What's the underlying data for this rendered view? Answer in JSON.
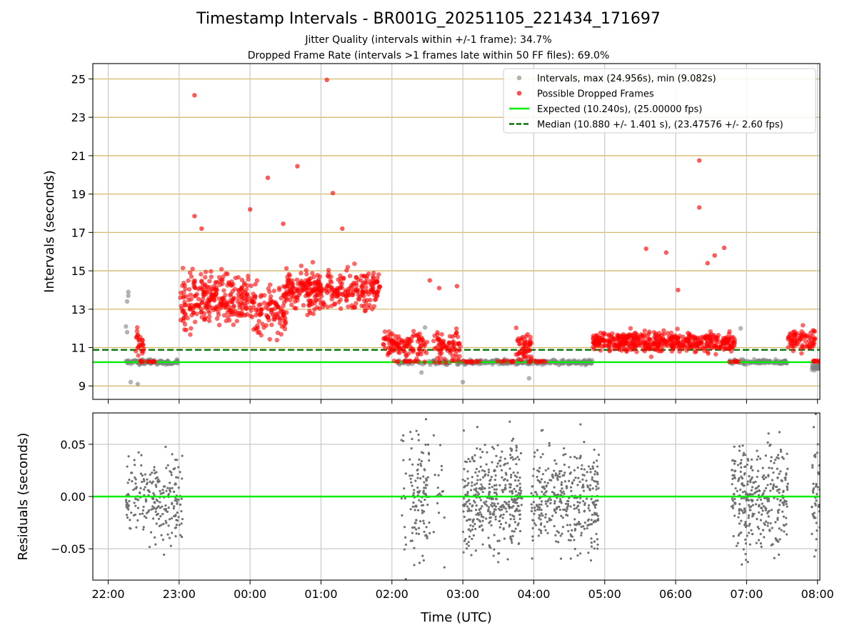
{
  "title": "Timestamp Intervals - BR001G_20251105_221434_171697",
  "subtitle_1": "Jitter Quality (intervals within +/-1 frame): 34.7%",
  "subtitle_2": "Dropped Frame Rate (intervals >1 frames late within 50 FF files): 69.0%",
  "colors": {
    "intervals": "#808080",
    "dropped": "#ff0000",
    "expected": "#00ee00",
    "median": "#007700",
    "hgrid_top": "#d4b86a",
    "grid": "#c8c8c8",
    "residuals": "#707070"
  },
  "chart_data": [
    {
      "type": "scatter",
      "ylabel": "Intervals (seconds)",
      "xlim": [
        "21:47",
        "08:02"
      ],
      "ylim": [
        8.3,
        25.8
      ],
      "yticks": [
        9,
        11,
        13,
        15,
        17,
        19,
        21,
        23,
        25
      ],
      "xticks": [
        "22:00",
        "23:00",
        "00:00",
        "01:00",
        "02:00",
        "03:00",
        "04:00",
        "05:00",
        "06:00",
        "07:00",
        "08:00"
      ],
      "grid": "horizontal + vertical",
      "legend_position": "top-right",
      "legend": [
        {
          "label": "Intervals, max (24.956s), min (9.082s)",
          "kind": "gray-dot"
        },
        {
          "label": "Possible Dropped Frames",
          "kind": "red-dot"
        },
        {
          "label": "Expected (10.240s), (25.00000 fps)",
          "kind": "green-line"
        },
        {
          "label": "Median (10.880 +/- 1.401 s), (23.47576 +/- 2.60 fps)",
          "kind": "green-dashed"
        }
      ],
      "expected_interval": 10.24,
      "median_interval": 10.88,
      "series": [
        {
          "name": "Intervals, max (24.956s), min (9.082s)",
          "description": "mostly near 10.24 s; visible outliers at 22:17 (13.9) and 22:19 (9.2)",
          "clusters": [
            {
              "from": "22:15",
              "to": "22:59",
              "center": 10.24,
              "spread": 0.12,
              "n": 120
            },
            {
              "from": "02:05",
              "to": "02:50",
              "center": 10.24,
              "spread": 0.12,
              "n": 60
            },
            {
              "from": "02:55",
              "to": "04:50",
              "center": 10.24,
              "spread": 0.12,
              "n": 280
            },
            {
              "from": "06:45",
              "to": "07:35",
              "center": 10.24,
              "spread": 0.12,
              "n": 110
            },
            {
              "from": "07:55",
              "to": "08:02",
              "center": 10.0,
              "spread": 0.2,
              "n": 30
            }
          ],
          "points": [
            {
              "x": "22:17",
              "y": 13.9
            },
            {
              "x": "22:17",
              "y": 13.7
            },
            {
              "x": "22:16",
              "y": 13.4
            },
            {
              "x": "22:15",
              "y": 12.1
            },
            {
              "x": "22:16",
              "y": 11.8
            },
            {
              "x": "22:19",
              "y": 9.2
            },
            {
              "x": "22:25",
              "y": 9.1
            },
            {
              "x": "02:28",
              "y": 12.05
            },
            {
              "x": "02:25",
              "y": 9.7
            },
            {
              "x": "03:00",
              "y": 9.2
            },
            {
              "x": "03:56",
              "y": 9.4
            },
            {
              "x": "06:55",
              "y": 12.0
            }
          ]
        },
        {
          "name": "Possible Dropped Frames",
          "clusters": [
            {
              "from": "22:23",
              "to": "22:30",
              "center": 11.3,
              "spread": 0.7,
              "n": 25
            },
            {
              "from": "22:25",
              "to": "22:40",
              "center": 10.28,
              "spread": 0.04,
              "n": 12
            },
            {
              "from": "23:01",
              "to": "23:10",
              "center": 13.2,
              "spread": 1.6,
              "n": 40
            },
            {
              "from": "23:10",
              "to": "23:59",
              "center": 13.6,
              "spread": 1.1,
              "n": 230
            },
            {
              "from": "00:00",
              "to": "00:30",
              "center": 13.0,
              "spread": 1.4,
              "n": 120
            },
            {
              "from": "00:30",
              "to": "01:50",
              "center": 14.0,
              "spread": 0.9,
              "n": 330
            },
            {
              "from": "01:52",
              "to": "02:30",
              "center": 11.2,
              "spread": 0.6,
              "n": 110
            },
            {
              "from": "02:00",
              "to": "02:30",
              "center": 10.28,
              "spread": 0.04,
              "n": 15
            },
            {
              "from": "02:35",
              "to": "02:58",
              "center": 10.9,
              "spread": 0.8,
              "n": 75
            },
            {
              "from": "03:00",
              "to": "03:15",
              "center": 10.28,
              "spread": 0.04,
              "n": 12
            },
            {
              "from": "03:28",
              "to": "03:45",
              "center": 10.28,
              "spread": 0.04,
              "n": 10
            },
            {
              "from": "03:45",
              "to": "03:58",
              "center": 11.0,
              "spread": 0.8,
              "n": 50
            },
            {
              "from": "03:55",
              "to": "04:10",
              "center": 10.28,
              "spread": 0.04,
              "n": 12
            },
            {
              "from": "04:50",
              "to": "06:50",
              "center": 11.3,
              "spread": 0.45,
              "n": 480
            },
            {
              "from": "06:45",
              "to": "06:55",
              "center": 10.28,
              "spread": 0.04,
              "n": 8
            },
            {
              "from": "07:35",
              "to": "07:58",
              "center": 11.4,
              "spread": 0.55,
              "n": 75
            },
            {
              "from": "07:55",
              "to": "08:02",
              "center": 10.3,
              "spread": 0.05,
              "n": 10
            }
          ],
          "points": [
            {
              "x": "23:13",
              "y": 24.15
            },
            {
              "x": "01:05",
              "y": 24.95
            },
            {
              "x": "00:40",
              "y": 20.45
            },
            {
              "x": "00:15",
              "y": 19.85
            },
            {
              "x": "01:10",
              "y": 19.05
            },
            {
              "x": "23:13",
              "y": 17.85
            },
            {
              "x": "00:00",
              "y": 18.2
            },
            {
              "x": "00:28",
              "y": 17.45
            },
            {
              "x": "01:18",
              "y": 17.2
            },
            {
              "x": "23:19",
              "y": 17.2
            },
            {
              "x": "06:20",
              "y": 20.75
            },
            {
              "x": "06:20",
              "y": 18.3
            },
            {
              "x": "05:35",
              "y": 16.15
            },
            {
              "x": "05:52",
              "y": 15.95
            },
            {
              "x": "06:27",
              "y": 15.4
            },
            {
              "x": "06:33",
              "y": 15.8
            },
            {
              "x": "06:41",
              "y": 16.2
            },
            {
              "x": "02:32",
              "y": 14.5
            },
            {
              "x": "02:55",
              "y": 14.2
            },
            {
              "x": "02:40",
              "y": 14.1
            },
            {
              "x": "06:02",
              "y": 14.0
            }
          ]
        }
      ]
    },
    {
      "type": "scatter",
      "ylabel": "Residuals (seconds)",
      "xlabel": "Time (UTC)",
      "xlim": [
        "21:47",
        "08:02"
      ],
      "ylim": [
        -0.08,
        0.08
      ],
      "yticks": [
        0.05,
        0.0,
        -0.05
      ],
      "ytick_labels": [
        "0.05",
        "0.00",
        "−0.05"
      ],
      "xticks": [
        "22:00",
        "23:00",
        "00:00",
        "01:00",
        "02:00",
        "03:00",
        "04:00",
        "05:00",
        "06:00",
        "07:00",
        "08:00"
      ],
      "zero_line": 0.0,
      "grid": "horizontal + vertical",
      "series": [
        {
          "name": "",
          "clusters": [
            {
              "from": "22:15",
              "to": "23:03",
              "spread": 0.02,
              "n": 230
            },
            {
              "from": "02:08",
              "to": "02:12",
              "spread": 0.03,
              "n": 15
            },
            {
              "from": "02:15",
              "to": "02:32",
              "spread": 0.028,
              "n": 110
            },
            {
              "from": "02:35",
              "to": "02:45",
              "spread": 0.03,
              "n": 18
            },
            {
              "from": "03:00",
              "to": "03:50",
              "spread": 0.025,
              "n": 380
            },
            {
              "from": "03:58",
              "to": "04:55",
              "spread": 0.025,
              "n": 360
            },
            {
              "from": "06:47",
              "to": "07:35",
              "spread": 0.025,
              "n": 330
            },
            {
              "from": "07:55",
              "to": "08:02",
              "spread": 0.03,
              "n": 45
            }
          ]
        }
      ]
    }
  ]
}
